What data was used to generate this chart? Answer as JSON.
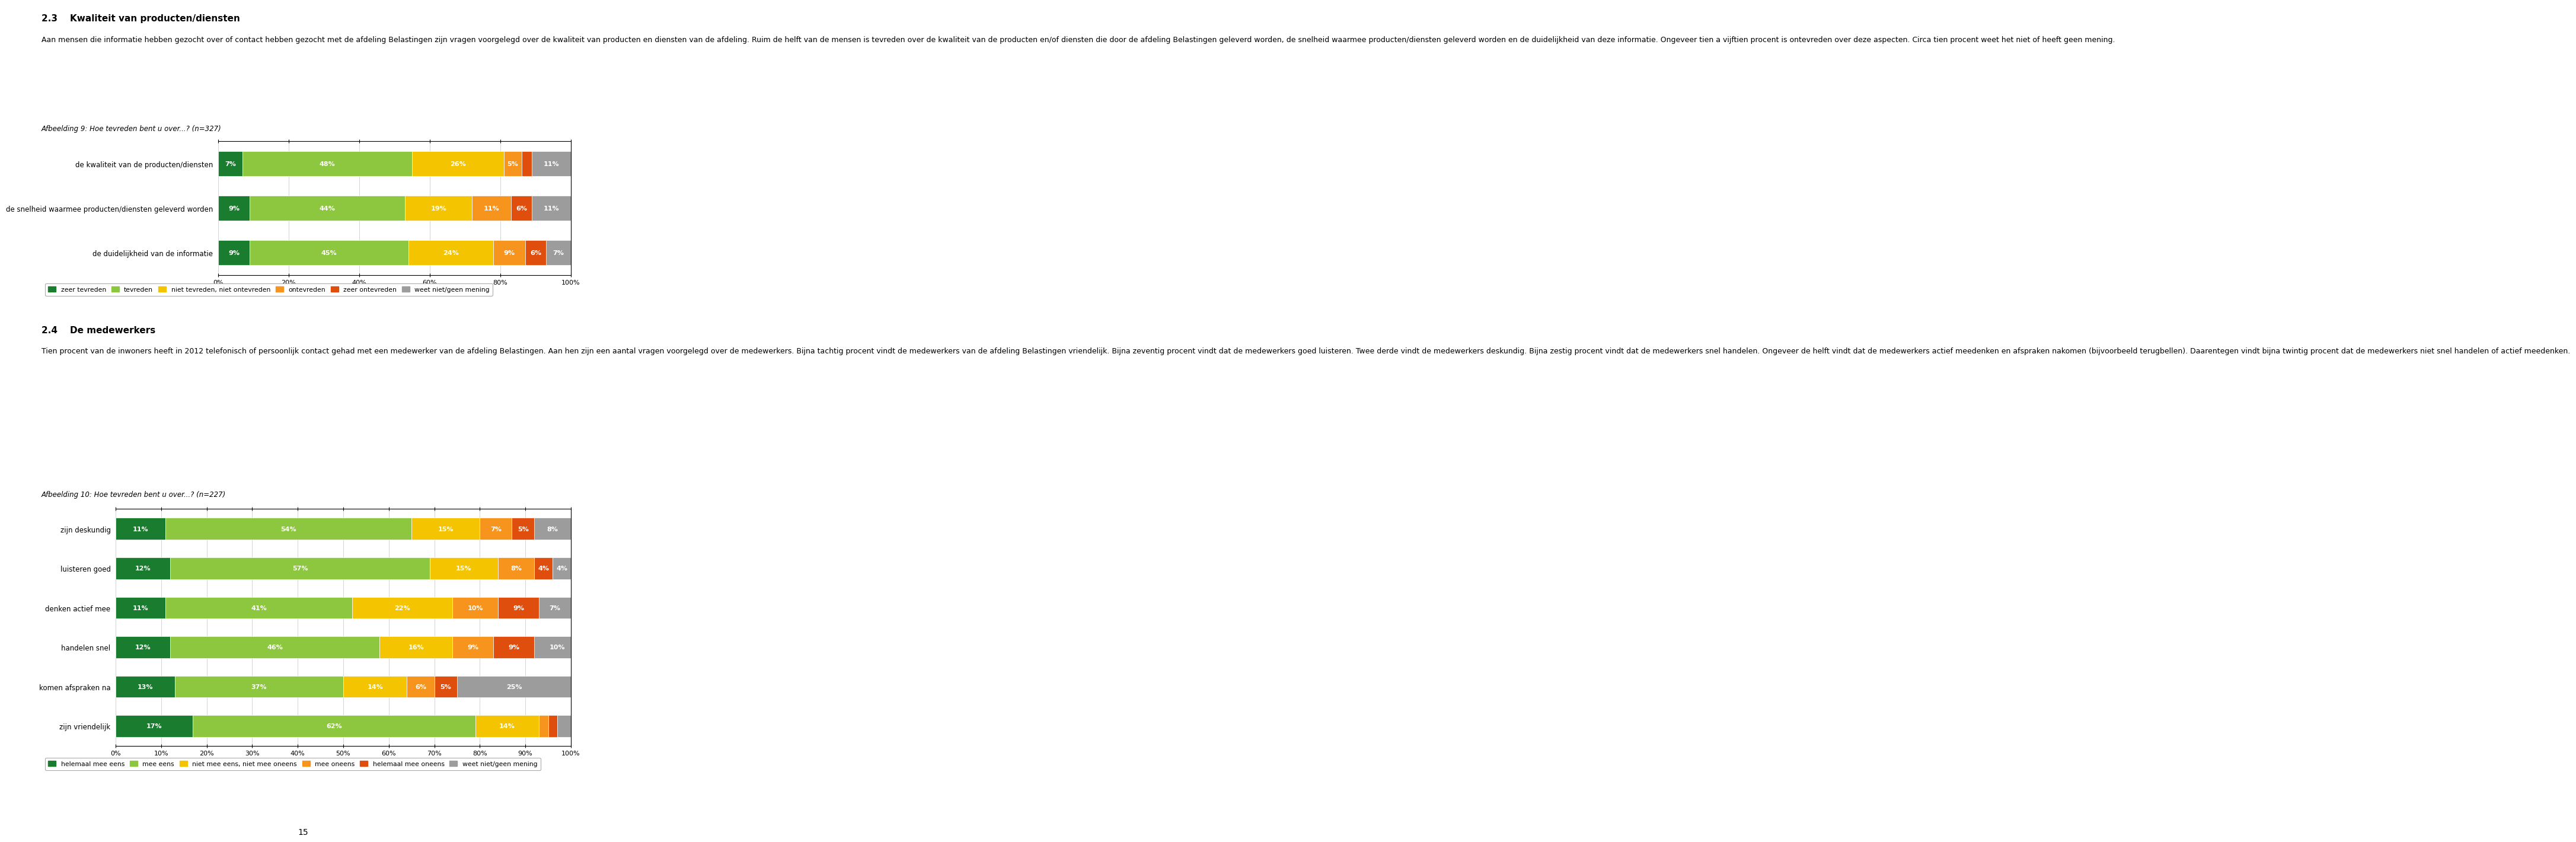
{
  "page_title_section": "2.3    Kwaliteit van producten/diensten",
  "paragraph1": "Aan mensen die informatie hebben gezocht over of contact hebben gezocht met de afdeling Belastingen zijn vragen voorgelegd over de kwaliteit van producten en diensten van de afdeling. Ruim de helft van de mensen is tevreden over de kwaliteit van de producten en/of diensten die door de afdeling Belastingen geleverd worden, de snelheid waarmee producten/diensten geleverd worden en de duidelijkheid van deze informatie. Ongeveer tien a vijftien procent is ontevreden over deze aspecten. Circa tien procent weet het niet of heeft geen mening.",
  "chart1_title": "Afbeelding 9: Hoe tevreden bent u over...? (n=327)",
  "chart1_categories": [
    "de kwaliteit van de producten/diensten",
    "de snelheid waarmee producten/diensten geleverd worden",
    "de duidelijkheid van de informatie"
  ],
  "chart1_data": [
    [
      7,
      48,
      26,
      5,
      3,
      11
    ],
    [
      9,
      44,
      19,
      11,
      6,
      11
    ],
    [
      9,
      45,
      24,
      9,
      6,
      7
    ]
  ],
  "chart1_colors": [
    "#1a7c2e",
    "#8dc63f",
    "#f5c400",
    "#f7941d",
    "#e04e0d",
    "#9c9c9c"
  ],
  "chart1_legend": [
    "zeer tevreden",
    "tevreden",
    "niet tevreden, niet ontevreden",
    "ontevreden",
    "zeer ontevreden",
    "weet niet/geen mening"
  ],
  "section2_title": "2.4    De medewerkers",
  "paragraph2": "Tien procent van de inwoners heeft in 2012 telefonisch of persoonlijk contact gehad met een medewerker van de afdeling Belastingen. Aan hen zijn een aantal vragen voorgelegd over de medewerkers. Bijna tachtig procent vindt de medewerkers van de afdeling Belastingen vriendelijk. Bijna zeventig procent vindt dat de medewerkers goed luisteren. Twee derde vindt de medewerkers deskundig. Bijna zestig procent vindt dat de medewerkers snel handelen. Ongeveer de helft vindt dat de medewerkers actief meedenken en afspraken nakomen (bijvoorbeeld terugbellen). Daarentegen vindt bijna twintig procent dat de medewerkers niet snel handelen of actief meedenken.",
  "chart2_title": "Afbeelding 10: Hoe tevreden bent u over...? (n=227)",
  "chart2_categories": [
    "zijn deskundig",
    "luisteren goed",
    "denken actief mee",
    "handelen snel",
    "komen afspraken na",
    "zijn vriendelijk"
  ],
  "chart2_data": [
    [
      11,
      54,
      15,
      7,
      5,
      8
    ],
    [
      12,
      57,
      15,
      8,
      4,
      4
    ],
    [
      11,
      41,
      22,
      10,
      9,
      7
    ],
    [
      12,
      46,
      16,
      9,
      9,
      10
    ],
    [
      13,
      37,
      14,
      6,
      5,
      25
    ],
    [
      17,
      62,
      14,
      2,
      2,
      3
    ]
  ],
  "chart2_colors": [
    "#1a7c2e",
    "#8dc63f",
    "#f5c400",
    "#f7941d",
    "#e04e0d",
    "#9c9c9c"
  ],
  "chart2_legend": [
    "helemaal mee eens",
    "mee eens",
    "niet mee eens, niet mee oneens",
    "mee oneens",
    "helemaal mee oneens",
    "weet niet/geen mening"
  ],
  "page_number": "15",
  "bg_color": "#ffffff",
  "text_color": "#000000"
}
